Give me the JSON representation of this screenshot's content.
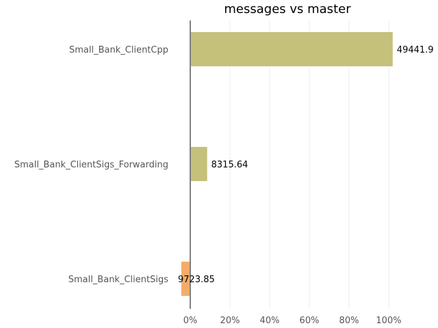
{
  "chart_data": {
    "type": "bar",
    "orientation": "horizontal",
    "title": "messages vs master",
    "xlabel": "",
    "ylabel": "",
    "xlim": [
      -0.06,
      1.1
    ],
    "xticks": [
      0,
      0.2,
      0.4,
      0.6,
      0.8,
      1.0
    ],
    "xtick_labels": [
      "0%",
      "20%",
      "40%",
      "60%",
      "80%",
      "100%"
    ],
    "grid": true,
    "categories": [
      "Small_Bank_ClientCpp",
      "Small_Bank_ClientSigs_Forwarding",
      "Small_Bank_ClientSigs"
    ],
    "values": [
      1.02,
      0.085,
      -0.045
    ],
    "data_labels": [
      "49441.9",
      "8315.64",
      "9723.85"
    ],
    "colors": [
      "#c5c07a",
      "#c5c07a",
      "#f3ac6a"
    ],
    "zero_line_color": "#808080"
  }
}
